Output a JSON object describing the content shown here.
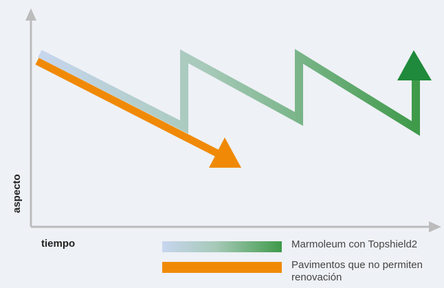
{
  "axes": {
    "y_label": "aspecto",
    "x_label": "tiempo"
  },
  "legend": [
    {
      "text": "Marmoleum con Topshield2"
    },
    {
      "text": "Pavimentos que no permiten renovación"
    }
  ],
  "colors": {
    "axis": "#bcbcbc",
    "gradient_start": "#c7d6ee",
    "gradient_mid": "#a6c9b8",
    "gradient_end": "#3f9a4a",
    "arrow_green": "#1f8a3b",
    "orange": "#f08a06"
  }
}
